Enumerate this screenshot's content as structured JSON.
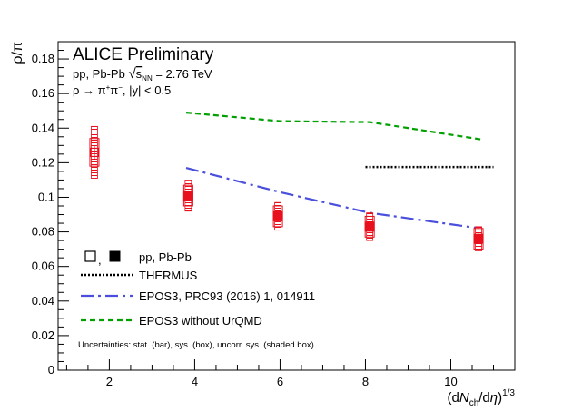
{
  "chart_data": {
    "type": "scatter",
    "title": "ALICE Preliminary",
    "subtitle_lines": [
      {
        "prefix": "pp, Pb-Pb ",
        "sqrt_sym": "√",
        "s": "s",
        "sub": "NN",
        "suffix": " = 2.76 TeV"
      },
      {
        "prefix": "ρ → π",
        "sup1": "+",
        "mid": "π",
        "sup2": "−",
        "suffix": ", |y| < 0.5"
      }
    ],
    "xlabel": {
      "pre": "(d",
      "N": "N",
      "sub": "ch",
      "mid": "/d",
      "eta": "η",
      "close": ")",
      "sup": "1/3"
    },
    "ylabel": "ρ/π",
    "xlim": [
      0.8,
      11.5
    ],
    "ylim": [
      0,
      0.19
    ],
    "x_ticks": [
      2,
      4,
      6,
      8,
      10
    ],
    "x_tick_labels": [
      "2",
      "4",
      "6",
      "8",
      "10"
    ],
    "y_ticks": [
      0,
      0.02,
      0.04,
      0.06,
      0.08,
      0.1,
      0.12,
      0.14,
      0.16,
      0.18
    ],
    "y_tick_labels": [
      "0",
      "0.02",
      "0.04",
      "0.06",
      "0.08",
      "0.1",
      "0.12",
      "0.14",
      "0.16",
      "0.18"
    ],
    "series": [
      {
        "name": "pp",
        "marker": "open-square",
        "color": "#e8101c",
        "points": [
          {
            "x": 1.65,
            "y": 0.126,
            "stat": 0.004,
            "sys": 0.008,
            "uncorr": 0.015
          }
        ]
      },
      {
        "name": "Pb-Pb",
        "marker": "filled-square",
        "color": "#e8101c",
        "points": [
          {
            "x": 3.85,
            "y": 0.101,
            "stat": 0.003,
            "sys": 0.006,
            "uncorr": 0.009
          },
          {
            "x": 5.95,
            "y": 0.089,
            "stat": 0.003,
            "sys": 0.006,
            "uncorr": 0.008
          },
          {
            "x": 8.1,
            "y": 0.083,
            "stat": 0.003,
            "sys": 0.006,
            "uncorr": 0.008
          },
          {
            "x": 10.65,
            "y": 0.076,
            "stat": 0.003,
            "sys": 0.006,
            "uncorr": 0.007
          }
        ]
      }
    ],
    "models": [
      {
        "name": "THERMUS",
        "style": "dotted",
        "color": "#000000",
        "points": [
          [
            8.0,
            0.1175
          ],
          [
            11.0,
            0.1175
          ]
        ]
      },
      {
        "name": "EPOS3, PRC93 (2016) 1, 014911",
        "style": "dashdot",
        "color": "#4a4fdc",
        "points": [
          [
            3.8,
            0.117
          ],
          [
            6.0,
            0.103
          ],
          [
            8.1,
            0.091
          ],
          [
            10.7,
            0.082
          ]
        ]
      },
      {
        "name": "EPOS3 without UrQMD",
        "style": "dashed",
        "color": "#00a000",
        "points": [
          [
            3.8,
            0.149
          ],
          [
            6.0,
            0.144
          ],
          [
            8.1,
            0.1435
          ],
          [
            10.7,
            0.1335
          ]
        ]
      }
    ],
    "legend": {
      "position": "bottom-left",
      "data_label": "pp, Pb-Pb",
      "data_sep": ",",
      "note": "Uncertainties: stat. (bar), sys. (box), uncorr. sys. (shaded box)"
    }
  }
}
